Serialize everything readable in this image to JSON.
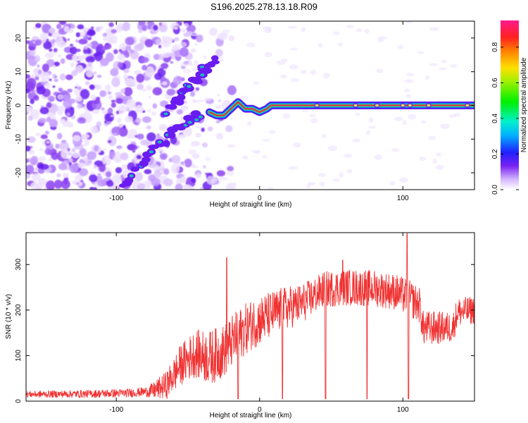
{
  "figure_title": "S196.2025.278.13.18.R09",
  "colors": {
    "snr_line": "#f03232",
    "axis": "#000000",
    "blob": "#6a1cf0",
    "ridge_edge": "#00c8e6",
    "ridge_core": "#e8284a"
  },
  "chart_data": [
    {
      "type": "heatmap",
      "title": "",
      "xlabel": "Height of straight line (km)",
      "ylabel": "Frequency (Hz)",
      "xlim": [
        -163,
        150
      ],
      "ylim": [
        -25,
        25
      ],
      "xticks": [
        -100,
        0,
        100
      ],
      "yticks": [
        -20,
        -10,
        0,
        10,
        20
      ],
      "x_tick_labels": [
        "-100",
        "0",
        "100"
      ],
      "y_tick_labels": [
        "-20",
        "-10",
        "0",
        "10",
        "20"
      ],
      "colorbar": {
        "label": "Normalized spectral amplitude",
        "range": [
          0,
          0.95
        ],
        "ticks": [
          0.0,
          0.2,
          0.4,
          0.6,
          0.8
        ],
        "tick_labels": [
          "0.0",
          "0.2",
          "0.4",
          "0.6",
          "0.8"
        ],
        "colormap": "rainbow (purple-blue-cyan-green-yellow-red-magenta)"
      },
      "noise_region_height_km": [
        -163,
        -50
      ],
      "ridge": [
        {
          "h": -35,
          "f": -2
        },
        {
          "h": -30,
          "f": -3
        },
        {
          "h": -25,
          "f": -3
        },
        {
          "h": -20,
          "f": -1
        },
        {
          "h": -15,
          "f": 1
        },
        {
          "h": -10,
          "f": -1
        },
        {
          "h": -5,
          "f": -1
        },
        {
          "h": 0,
          "f": -2
        },
        {
          "h": 5,
          "f": -1
        },
        {
          "h": 8,
          "f": 0
        },
        {
          "h": 50,
          "f": 0
        },
        {
          "h": 100,
          "f": 0
        },
        {
          "h": 150,
          "f": 0
        }
      ],
      "descending_branches": [
        {
          "name": "upper branch",
          "points": [
            {
              "h": -65,
              "f": -2
            },
            {
              "h": -50,
              "f": 5
            },
            {
              "h": -40,
              "f": 10
            },
            {
              "h": -30,
              "f": 14
            }
          ]
        },
        {
          "name": "lower branch",
          "points": [
            {
              "h": -95,
              "f": -24
            },
            {
              "h": -75,
              "f": -14
            },
            {
              "h": -55,
              "f": -6
            },
            {
              "h": -40,
              "f": -2
            }
          ]
        }
      ]
    },
    {
      "type": "line",
      "title": "",
      "xlabel": "Height of straight line (km)",
      "ylabel": "SNR (10 * v/v)",
      "xlim": [
        -163,
        150
      ],
      "ylim": [
        0,
        370
      ],
      "xticks": [
        -100,
        0,
        100
      ],
      "yticks": [
        0,
        100,
        200,
        300
      ],
      "x_tick_labels": [
        "-100",
        "0",
        "100"
      ],
      "y_tick_labels": [
        "0",
        "100",
        "200",
        "300"
      ],
      "series": [
        {
          "name": "SNR",
          "baseline": [
            {
              "h": -163,
              "snr": 15
            },
            {
              "h": -120,
              "snr": 16
            },
            {
              "h": -90,
              "snr": 18
            },
            {
              "h": -75,
              "snr": 22
            },
            {
              "h": -65,
              "snr": 35
            },
            {
              "h": -55,
              "snr": 80
            },
            {
              "h": -45,
              "snr": 105
            },
            {
              "h": -35,
              "snr": 95
            },
            {
              "h": -25,
              "snr": 110
            },
            {
              "h": -15,
              "snr": 145
            },
            {
              "h": -5,
              "snr": 170
            },
            {
              "h": 5,
              "snr": 185
            },
            {
              "h": 15,
              "snr": 200
            },
            {
              "h": 30,
              "snr": 215
            },
            {
              "h": 45,
              "snr": 245
            },
            {
              "h": 60,
              "snr": 250
            },
            {
              "h": 80,
              "snr": 248
            },
            {
              "h": 95,
              "snr": 240
            },
            {
              "h": 105,
              "snr": 225
            },
            {
              "h": 112,
              "snr": 210
            },
            {
              "h": 114,
              "snr": 160
            },
            {
              "h": 135,
              "snr": 162
            },
            {
              "h": 138,
              "snr": 195
            },
            {
              "h": 150,
              "snr": 200
            }
          ],
          "noise_amplitude": [
            {
              "h": -163,
              "amp": 7
            },
            {
              "h": -80,
              "amp": 10
            },
            {
              "h": -55,
              "amp": 45
            },
            {
              "h": -35,
              "amp": 60
            },
            {
              "h": 0,
              "amp": 55
            },
            {
              "h": 40,
              "amp": 40
            },
            {
              "h": 110,
              "amp": 40
            },
            {
              "h": 150,
              "amp": 30
            }
          ],
          "spikes": [
            {
              "h": -23,
              "snr": 315
            },
            {
              "h": 103,
              "snr": 368
            },
            {
              "h": 58,
              "snr": 310
            }
          ],
          "dropouts": [
            {
              "h": -15,
              "snr": 5
            },
            {
              "h": 16,
              "snr": 5
            },
            {
              "h": 46,
              "snr": 5
            },
            {
              "h": 75,
              "snr": 5
            },
            {
              "h": 104,
              "snr": 5
            }
          ]
        }
      ]
    }
  ]
}
